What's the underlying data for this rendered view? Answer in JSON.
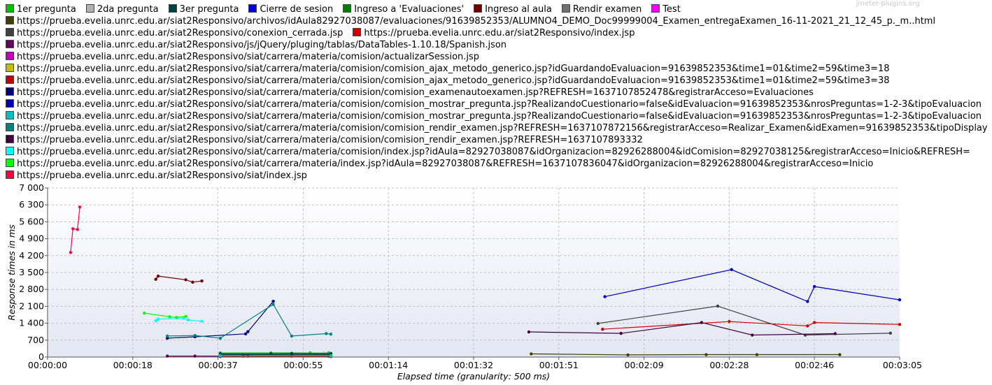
{
  "watermark": "jmeter-plugins.org",
  "chart_data": {
    "type": "line",
    "title": "",
    "xlabel": "Elapsed time (granularity: 500 ms)",
    "ylabel": "Response times in ms",
    "xlim": [
      0,
      185
    ],
    "ylim": [
      0,
      7000
    ],
    "x_unit": "seconds",
    "x_ticks": [
      0,
      18.5,
      37,
      55.5,
      74,
      92.5,
      111,
      129.5,
      148,
      166.5,
      185
    ],
    "x_tick_labels": [
      "00:00:00",
      "00:00:18",
      "00:00:37",
      "00:00:55",
      "00:01:14",
      "00:01:32",
      "00:01:51",
      "00:02:09",
      "00:02:28",
      "00:02:46",
      "00:03:05"
    ],
    "y_ticks": [
      0,
      700,
      1400,
      2100,
      2800,
      3500,
      4200,
      4900,
      5600,
      6300,
      7000
    ],
    "y_tick_labels": [
      "0",
      "700",
      "1 400",
      "2 100",
      "2 800",
      "3 500",
      "4 200",
      "4 900",
      "5 600",
      "6 300",
      "7 000"
    ],
    "grid": true,
    "legend_placement": "top",
    "series": [
      {
        "name": "1er pregunta",
        "color": "#00c000",
        "x": [
          37.5,
          48.5,
          57,
          61
        ],
        "y": [
          170,
          175,
          170,
          170
        ]
      },
      {
        "name": "2da pregunta",
        "color": "#b0b0b0",
        "x": [
          37.5,
          48.5,
          53,
          60,
          61.5
        ],
        "y": [
          150,
          160,
          160,
          165,
          160
        ]
      },
      {
        "name": "3er pregunta",
        "color": "#004040",
        "x": [
          37.5,
          48.5,
          53,
          61.5
        ],
        "y": [
          140,
          140,
          150,
          145
        ]
      },
      {
        "name": "Cierre de sesion",
        "color": "#0000e0",
        "x": [
          37.5,
          61.5
        ],
        "y": [
          110,
          110
        ]
      },
      {
        "name": "Ingreso a 'Evaluaciones'",
        "color": "#008000",
        "x": [
          37.5,
          61.5
        ],
        "y": [
          90,
          90
        ]
      },
      {
        "name": "Ingreso al aula",
        "color": "#700000",
        "x": [
          23.5,
          24,
          30,
          31.5,
          33.5
        ],
        "y": [
          3220,
          3350,
          3200,
          3100,
          3150
        ]
      },
      {
        "name": "Rendir examen",
        "color": "#707070",
        "x": [
          37.5,
          61.5
        ],
        "y": [
          60,
          60
        ]
      },
      {
        "name": "Test",
        "color": "#ff00ff",
        "x": [
          37.5,
          61.5
        ],
        "y": [
          40,
          40
        ]
      },
      {
        "name": "https://prueba.evelia.unrc.edu.ar/siat2Responsivo/archivos/idAula82927038087/evaluaciones/91639852353/ALUMNO4_DEMO_Doc99999004_Examen_entregaExamen_16-11-2021_21_12_45_p._m..html",
        "color": "#404000",
        "x": [
          105,
          126,
          143,
          154,
          172
        ],
        "y": [
          130,
          90,
          100,
          100,
          100
        ]
      },
      {
        "name": "https://prueba.evelia.unrc.edu.ar/siat2Responsivo/conexion_cerrada.jsp",
        "color": "#404040",
        "x": [
          119.5,
          145.5,
          164.5,
          183
        ],
        "y": [
          1390,
          2110,
          910,
          990
        ]
      },
      {
        "name": "https://prueba.evelia.unrc.edu.ar/siat2Responsivo/index.jsp",
        "color": "#d00000",
        "x": [
          120.5,
          148,
          165,
          166.5,
          185
        ],
        "y": [
          1150,
          1470,
          1290,
          1430,
          1350
        ]
      },
      {
        "name": "https://prueba.evelia.unrc.edu.ar/siat2Responsivo/js/jQuery/pluging/tablas/DataTables-1.10.18/Spanish.json",
        "color": "#600060",
        "x": [
          26,
          32,
          42.5,
          43.5,
          53
        ],
        "y": [
          40,
          40,
          40,
          40,
          40
        ]
      },
      {
        "name": "https://prueba.evelia.unrc.edu.ar/siat2Responsivo/siat/carrera/materia/comision/actualizarSession.jsp",
        "color": "#c000c0",
        "x": [
          37.5,
          61
        ],
        "y": [
          30,
          30
        ]
      },
      {
        "name": "https://prueba.evelia.unrc.edu.ar/siat2Responsivo/siat/carrera/materia/comision/comision_ajax_metodo_generico.jsp?idGuardandoEvaluacion=91639852353&time1=01&time2=59&time3=18",
        "color": "#c0c000",
        "x": [
          37.5,
          61.5
        ],
        "y": [
          20,
          20
        ]
      },
      {
        "name": "https://prueba.evelia.unrc.edu.ar/siat2Responsivo/siat/carrera/materia/comision/comision_ajax_metodo_generico.jsp?idGuardandoEvaluacion=91639852353&time1=01&time2=59&time3=38",
        "color": "#c00000",
        "x": [
          37.5,
          61.5
        ],
        "y": [
          15,
          15
        ]
      },
      {
        "name": "https://prueba.evelia.unrc.edu.ar/siat2Responsivo/siat/carrera/materia/comision/comision_examenautoexamen.jsp?REFRESH=1637107852478&registrarAcceso=Evaluaciones",
        "color": "#000080",
        "x": [
          26,
          32,
          43,
          43.5,
          49
        ],
        "y": [
          780,
          840,
          960,
          1050,
          2310
        ]
      },
      {
        "name": "https://prueba.evelia.unrc.edu.ar/siat2Responsivo/siat/carrera/materia/comision/comision_mostrar_pregunta.jsp?RealizandoCuestionario=false&idEvaluacion=91639852353&nrosPreguntas=1-2-3&tipoEvaluacion",
        "color": "#0000c0",
        "x": [
          121,
          148.5,
          165,
          166.5,
          185
        ],
        "y": [
          2500,
          3620,
          2300,
          2920,
          2370
        ]
      },
      {
        "name": "https://prueba.evelia.unrc.edu.ar/siat2Responsivo/siat/carrera/materia/comision/comision_mostrar_pregunta.jsp?RealizandoCuestionario=false&idEvaluacion=91639852353&nrosPreguntas=1-2-3&tipoEvaluacion",
        "color": "#00c0c0",
        "x": [
          37.5,
          61.5
        ],
        "y": [
          50,
          50
        ]
      },
      {
        "name": "https://prueba.evelia.unrc.edu.ar/siat2Responsivo/siat/carrera/materia/comision/comision_rendir_examen.jsp?REFRESH=1637107872156&registrarAcceso=Realizar_Examen&idExamen=91639852353&tipoDisplay",
        "color": "#008080",
        "x": [
          26,
          32,
          37.5,
          49,
          53,
          60.5,
          61.5
        ],
        "y": [
          870,
          890,
          780,
          2180,
          870,
          970,
          950
        ]
      },
      {
        "name": "https://prueba.evelia.unrc.edu.ar/siat2Responsivo/siat/carrera/materia/comision/comision_rendir_examen.jsp?REFRESH=1637107893332",
        "color": "#400040",
        "x": [
          104.5,
          124.5,
          142,
          153,
          171
        ],
        "y": [
          1040,
          980,
          1430,
          910,
          970
        ]
      },
      {
        "name": "https://prueba.evelia.unrc.edu.ar/siat2Responsivo/siat/carrera/materia/comision/index.jsp?idAula=82927038087&idOrganizacion=82926288004&idComision=82927038125&registrarAcceso=Inicio&REFRESH=",
        "color": "#00ffff",
        "x": [
          23.5,
          24,
          29.5,
          30.5,
          33.5
        ],
        "y": [
          1500,
          1570,
          1600,
          1540,
          1480
        ]
      },
      {
        "name": "https://prueba.evelia.unrc.edu.ar/siat2Responsivo/siat/carrera/materia/index.jsp?idAula=82927038087&REFRESH=1637107836047&idOrganizacion=82926288004&registrarAcceso=Inicio",
        "color": "#00ff00",
        "x": [
          21,
          26.5,
          28,
          30
        ],
        "y": [
          1820,
          1670,
          1640,
          1680
        ]
      },
      {
        "name": "https://prueba.evelia.unrc.edu.ar/siat2Responsivo/siat/index.jsp",
        "color": "#ff0040",
        "x": [
          5,
          5.5,
          6.5,
          7
        ],
        "y": [
          4330,
          5310,
          5280,
          6210
        ]
      }
    ]
  },
  "legend_layout": [
    [
      0,
      1,
      2,
      3,
      4,
      5,
      6,
      7
    ],
    [
      8
    ],
    [
      9,
      10
    ],
    [
      11
    ],
    [
      12
    ],
    [
      13
    ],
    [
      14
    ],
    [
      15
    ],
    [
      16
    ],
    [
      17
    ],
    [
      18
    ],
    [
      19
    ],
    [
      20
    ],
    [
      21
    ],
    [
      22
    ]
  ]
}
